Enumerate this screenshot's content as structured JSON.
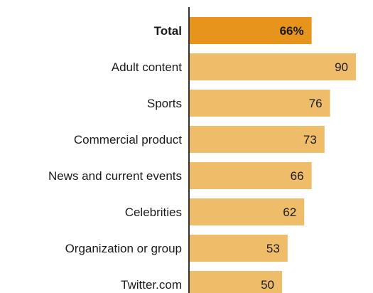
{
  "chart_data": {
    "type": "bar",
    "orientation": "horizontal",
    "categories": [
      "Total",
      "Adult content",
      "Sports",
      "Commercial product",
      "News and current events",
      "Celebrities",
      "Organization or group",
      "Twitter.com"
    ],
    "values": [
      66,
      90,
      76,
      73,
      66,
      62,
      53,
      50
    ],
    "value_labels": [
      "66%",
      "90",
      "76",
      "73",
      "66",
      "62",
      "53",
      "50"
    ],
    "highlight_index": 0,
    "xlim": [
      0,
      100
    ],
    "colors": {
      "highlight": "#e6941c",
      "bar": "#efbd6a",
      "axis": "#333333"
    },
    "grid": false,
    "legend": "none"
  }
}
